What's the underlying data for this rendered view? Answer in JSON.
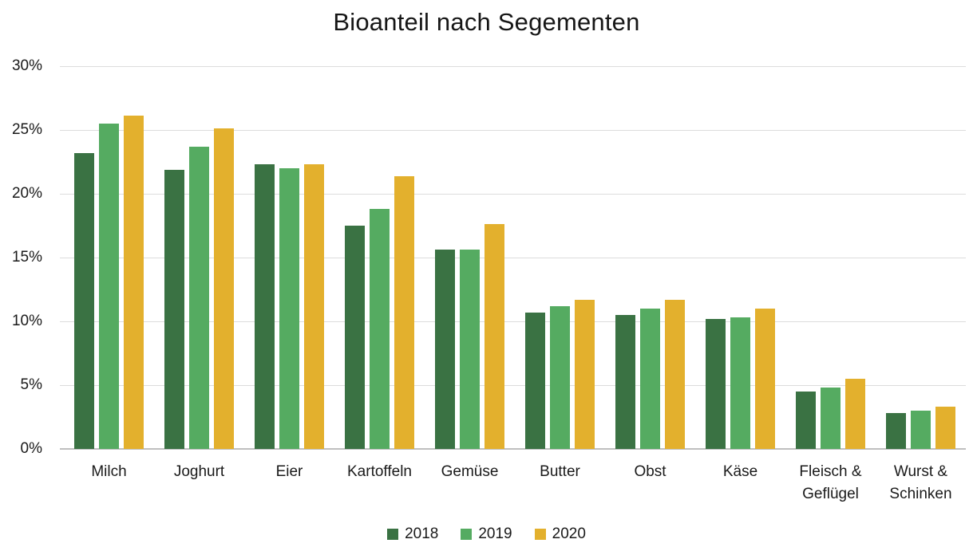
{
  "chart_data": {
    "type": "bar",
    "title": "Bioanteil nach Segementen",
    "categories": [
      "Milch",
      "Joghurt",
      "Eier",
      "Kartoffeln",
      "Gemüse",
      "Butter",
      "Obst",
      "Käse",
      "Fleisch &\nGeflügel",
      "Wurst &\nSchinken"
    ],
    "series": [
      {
        "name": "2018",
        "color": "#3A7243",
        "values": [
          23.2,
          21.9,
          22.3,
          17.5,
          15.6,
          10.7,
          10.5,
          10.2,
          4.5,
          2.8
        ]
      },
      {
        "name": "2019",
        "color": "#55AB61",
        "values": [
          25.5,
          23.7,
          22.0,
          18.8,
          15.6,
          11.2,
          11.0,
          10.3,
          4.8,
          3.0
        ]
      },
      {
        "name": "2020",
        "color": "#E3B02D",
        "values": [
          26.1,
          25.1,
          22.3,
          21.4,
          17.6,
          11.7,
          11.7,
          11.0,
          5.5,
          3.3
        ]
      }
    ],
    "ylim": [
      0,
      30
    ],
    "yticks": [
      0,
      5,
      10,
      15,
      20,
      25,
      30
    ],
    "ytick_suffix": "%",
    "xlabel": "",
    "ylabel": "",
    "grid": true,
    "legend_position": "bottom",
    "colors": {
      "text": "#1a1a1a",
      "gridline": "#dcdcdc",
      "baseline": "#bfbfbf",
      "background": "#ffffff"
    }
  }
}
